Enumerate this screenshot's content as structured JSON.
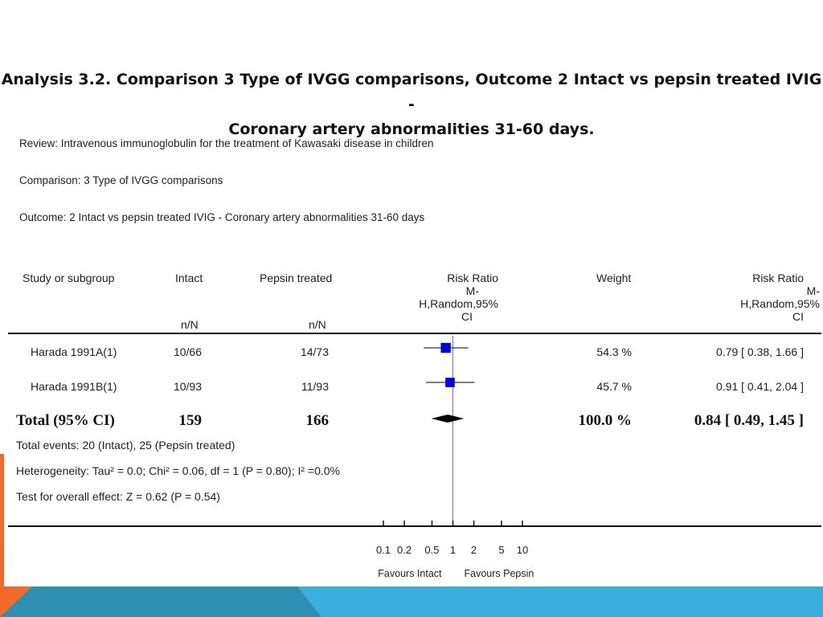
{
  "slide": {
    "title_line1": "Analysis 3.2.   Comparison 3 Type of IVGG comparisons, Outcome 2 Intact vs pepsin treated IVIG -",
    "title_line2": "Coronary artery abnormalities 31-60 days."
  },
  "meta": {
    "review": "Review:   Intravenous immunoglobulin for the treatment of Kawasaki disease in children",
    "comparison": "Comparison:   3 Type of IVGG comparisons",
    "outcome": "Outcome:   2 Intact vs pepsin treated IVIG - Coronary artery abnormalities 31-60 days"
  },
  "headers": {
    "study": "Study or subgroup",
    "intact": "Intact",
    "intact_sub": "n/N",
    "pepsin": "Pepsin treated",
    "pepsin_sub": "n/N",
    "rr_plot_l1": "Risk Ratio",
    "rr_plot_l2": "M-",
    "rr_plot_l3": "H,Random,95%",
    "rr_plot_l4": "CI",
    "weight": "Weight",
    "rr_l1": "Risk Ratio",
    "rr_l2": "M-",
    "rr_l3": "H,Random,95%",
    "rr_l4": "CI"
  },
  "studies": [
    {
      "name": "Harada 1991A(1)",
      "intact": "10/66",
      "pepsin": "14/73",
      "weight": "54.3 %",
      "rr_text": "0.79 [ 0.38, 1.66 ]"
    },
    {
      "name": "Harada 1991B(1)",
      "intact": "10/93",
      "pepsin": "11/93",
      "weight": "45.7 %",
      "rr_text": "0.91 [ 0.41, 2.04 ]"
    }
  ],
  "total": {
    "label": "Total (95% CI)",
    "intact": "159",
    "pepsin": "166",
    "weight": "100.0 %",
    "rr_text": "0.84 [ 0.49, 1.45 ]"
  },
  "footnotes": {
    "events": "Total events: 20 (Intact), 25 (Pepsin treated)",
    "heterogeneity": "Heterogeneity: Tau² = 0.0; Chi² = 0.06, df = 1 (P = 0.80); I² =0.0%",
    "overall": "Test for overall effect: Z = 0.62 (P = 0.54)"
  },
  "chart_data": {
    "type": "forest",
    "scale": "log",
    "xlim": [
      0.1,
      10
    ],
    "ticks": [
      0.1,
      0.2,
      0.5,
      1,
      2,
      5,
      10
    ],
    "tick_labels": [
      "0.1",
      "0.2",
      "0.5",
      "1",
      "2",
      "5",
      "10"
    ],
    "favours_left": "Favours Intact",
    "favours_right": "Favours Pepsin",
    "studies": [
      {
        "est": 0.79,
        "lo": 0.38,
        "hi": 1.66,
        "weight": 54.3
      },
      {
        "est": 0.91,
        "lo": 0.41,
        "hi": 2.04,
        "weight": 45.7
      }
    ],
    "pooled": {
      "est": 0.84,
      "lo": 0.49,
      "hi": 1.45
    },
    "colors": {
      "square": "#0000dd",
      "diamond": "#000000",
      "line": "#333333"
    }
  }
}
